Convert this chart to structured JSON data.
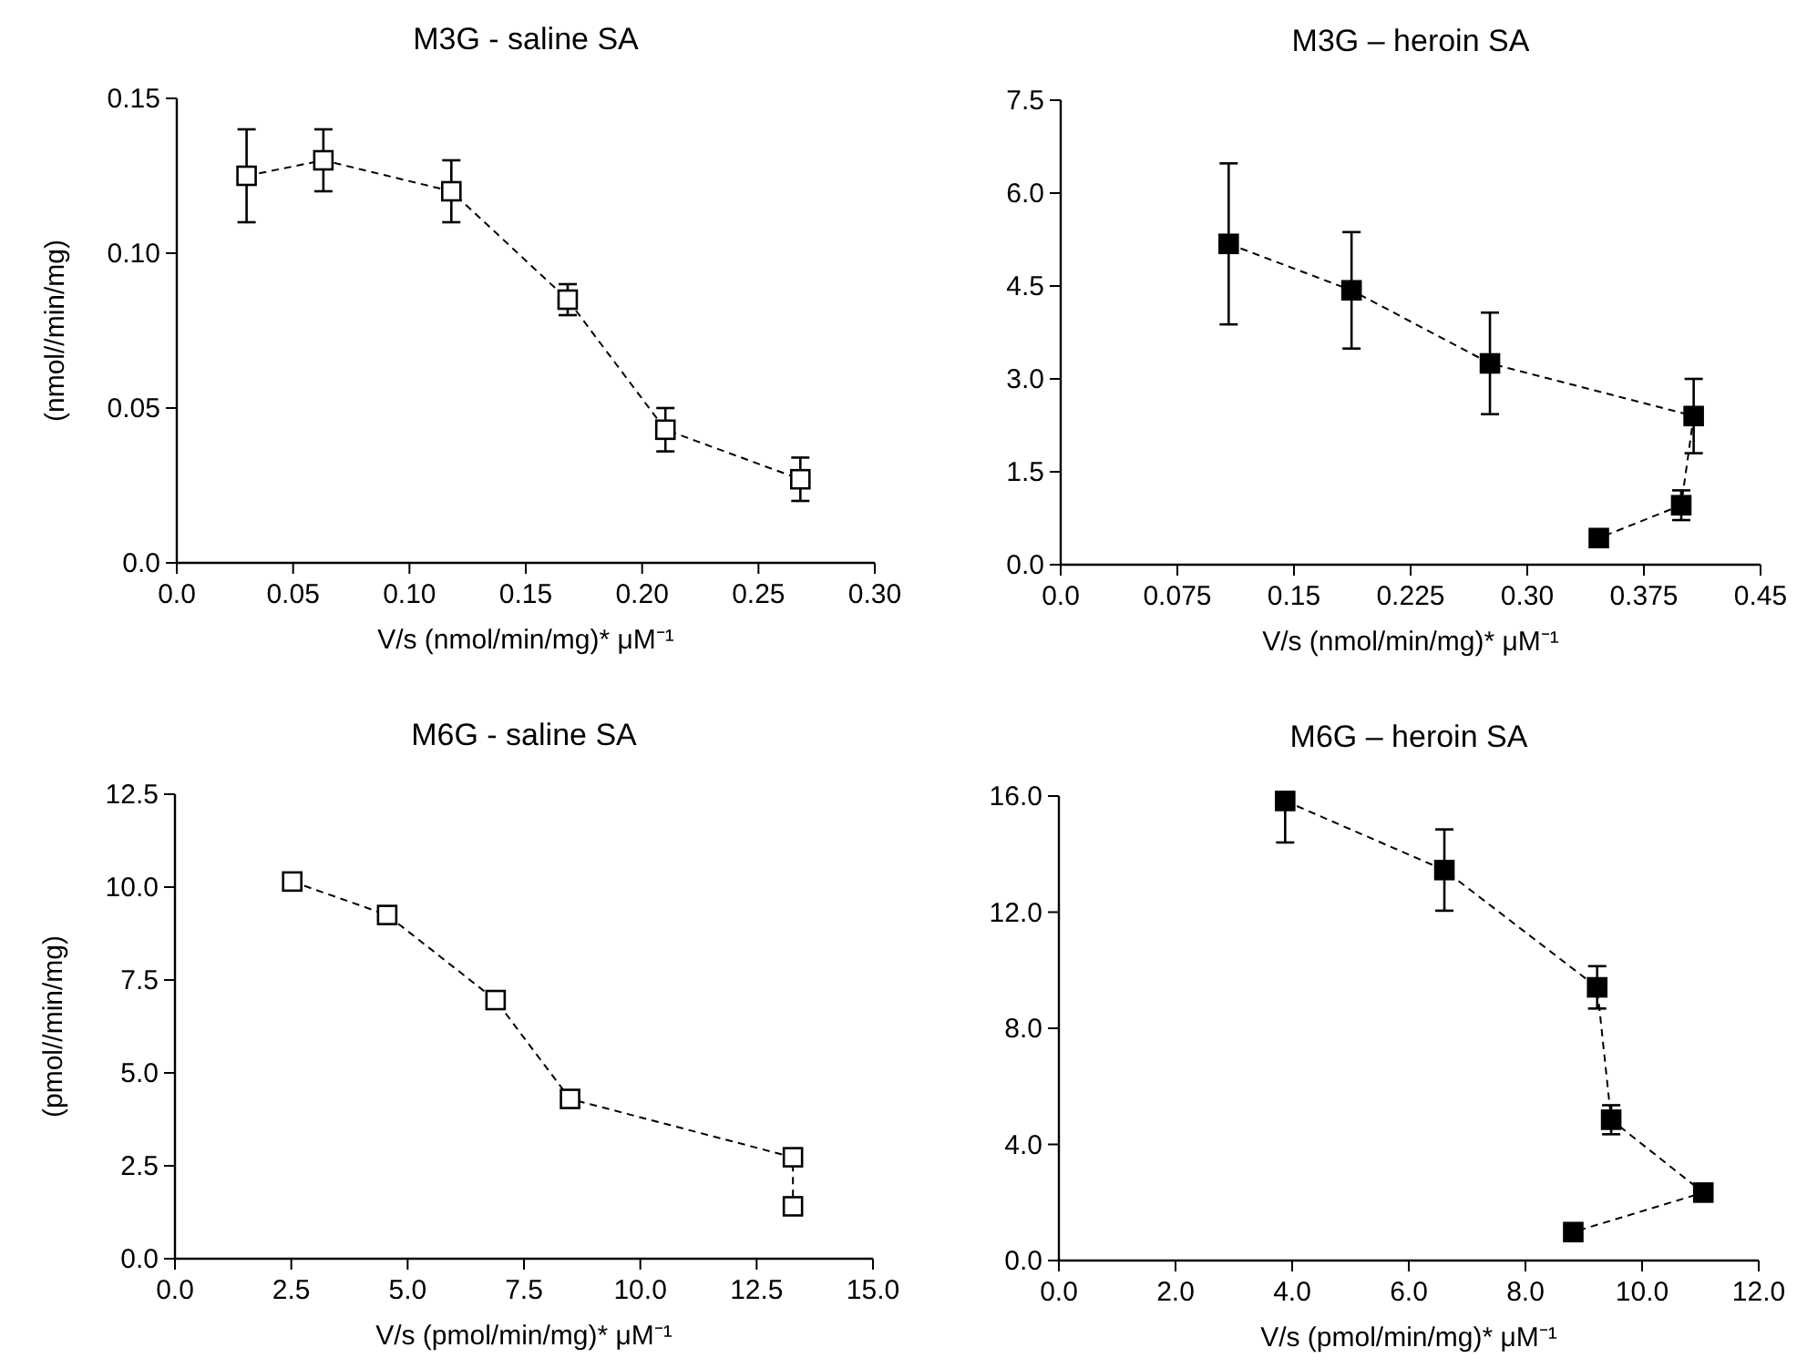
{
  "chart_data": [
    {
      "type": "line",
      "title": "M3G - saline SA",
      "xlabel": "V/s (nmol/min/mg)* μM⁻¹",
      "ylabel": "(nmol//min/mg)",
      "xlim": [
        0,
        0.3
      ],
      "xticks": [
        {
          "value": 0,
          "label": "0.0"
        },
        0.05,
        {
          "value": 0.1,
          "label": "0.10"
        },
        0.15,
        {
          "value": 0.2,
          "label": "0.20"
        },
        0.25,
        {
          "value": 0.3,
          "label": "0.30"
        }
      ],
      "ylim": [
        0,
        0.15
      ],
      "yticks": [
        {
          "value": 0,
          "label": "0.0"
        },
        0.05,
        {
          "value": 0.1,
          "label": "0.10"
        },
        0.15
      ],
      "marker": "square",
      "line_style": "dashed",
      "grid": false,
      "series": [
        {
          "color": "#ffffff",
          "x": [
            0.03,
            0.063,
            0.118,
            0.168,
            0.21,
            0.268
          ],
          "values": [
            0.125,
            0.13,
            0.12,
            0.085,
            0.043,
            0.027
          ],
          "errors": [
            0.015,
            0.01,
            0.01,
            0.005,
            0.007,
            0.007
          ]
        }
      ]
    },
    {
      "type": "line",
      "title": "M3G – heroin SA",
      "xlabel": "V/s (nmol/min/mg)* μM⁻¹",
      "xlim": [
        0,
        0.45
      ],
      "xticks": [
        {
          "value": 0,
          "label": "0.0"
        },
        0.075,
        0.15,
        0.225,
        {
          "value": 0.3,
          "label": "0.30"
        },
        0.375,
        0.45
      ],
      "ylim": [
        0,
        7.5
      ],
      "yticks": [
        {
          "value": 0,
          "label": "0.0"
        },
        1.5,
        {
          "value": 3,
          "label": "3.0"
        },
        4.5,
        {
          "value": 6,
          "label": "6.0"
        },
        7.5
      ],
      "marker": "square",
      "line_style": "dashed",
      "grid": false,
      "series": [
        {
          "color": "#000000",
          "x": [
            0.108,
            0.187,
            0.276,
            0.407,
            0.399,
            0.346
          ],
          "values": [
            5.18,
            4.43,
            3.25,
            2.4,
            0.96,
            0.43
          ],
          "errors": [
            1.3,
            0.94,
            0.82,
            0.6,
            0.24,
            null
          ]
        }
      ]
    },
    {
      "type": "line",
      "title": "M6G - saline SA",
      "xlabel": "V/s (pmol/min/mg)* μM⁻¹",
      "ylabel": "(pmol//min/mg)",
      "xlim": [
        0,
        15
      ],
      "xticks": [
        {
          "value": 0,
          "label": "0.0"
        },
        2.5,
        {
          "value": 5,
          "label": "5.0"
        },
        7.5,
        {
          "value": 10,
          "label": "10.0"
        },
        12.5,
        {
          "value": 15,
          "label": "15.0"
        }
      ],
      "ylim": [
        0,
        12.5
      ],
      "yticks": [
        {
          "value": 0,
          "label": "0.0"
        },
        2.5,
        {
          "value": 5,
          "label": "5.0"
        },
        7.5,
        {
          "value": 10,
          "label": "10.0"
        },
        12.5
      ],
      "marker": "square",
      "line_style": "dashed",
      "grid": false,
      "series": [
        {
          "color": "#ffffff",
          "x": [
            2.52,
            4.56,
            6.89,
            8.49,
            13.28,
            13.28
          ],
          "values": [
            10.15,
            9.25,
            6.96,
            4.3,
            2.73,
            1.41
          ]
        }
      ]
    },
    {
      "type": "line",
      "title": "M6G – heroin SA",
      "xlabel": "V/s (pmol/min/mg)* μM⁻¹",
      "xlim": [
        0,
        12
      ],
      "xticks": [
        {
          "value": 0,
          "label": "0.0"
        },
        {
          "value": 2,
          "label": "2.0"
        },
        {
          "value": 4,
          "label": "4.0"
        },
        {
          "value": 6,
          "label": "6.0"
        },
        {
          "value": 8,
          "label": "8.0"
        },
        {
          "value": 10,
          "label": "10.0"
        },
        {
          "value": 12,
          "label": "12.0"
        }
      ],
      "ylim": [
        0,
        16
      ],
      "yticks": [
        {
          "value": 0,
          "label": "0.0"
        },
        {
          "value": 4,
          "label": "4.0"
        },
        {
          "value": 8,
          "label": "8.0"
        },
        {
          "value": 12,
          "label": "12.0"
        },
        {
          "value": 16,
          "label": "16.0"
        }
      ],
      "marker": "square",
      "line_style": "dashed",
      "grid": false,
      "series": [
        {
          "color": "#000000",
          "x": [
            3.88,
            6.61,
            9.23,
            9.47,
            11.05,
            8.82
          ],
          "values": [
            15.83,
            13.45,
            9.41,
            4.85,
            2.34,
            0.98
          ],
          "errors": [
            [
              14.4,
              15.8
            ],
            1.4,
            0.73,
            0.5,
            null,
            null
          ]
        }
      ]
    }
  ]
}
